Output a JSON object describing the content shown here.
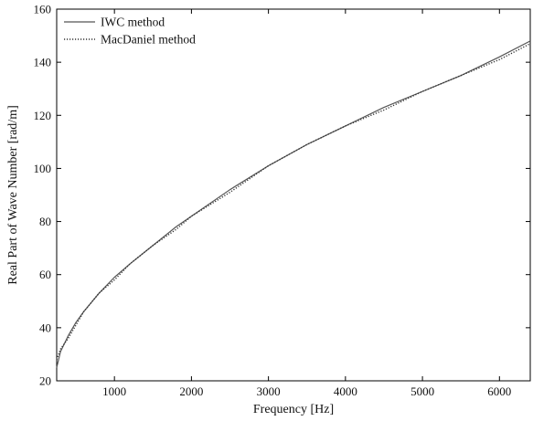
{
  "chart_data": {
    "type": "line",
    "title": "",
    "xlabel": "Frequency [Hz]",
    "ylabel": "Real Part of Wave Number [rad/m]",
    "xlim": [
      250,
      6400
    ],
    "ylim": [
      20,
      160
    ],
    "xticks": [
      1000,
      2000,
      3000,
      4000,
      5000,
      6000
    ],
    "yticks": [
      20,
      40,
      60,
      80,
      100,
      120,
      140,
      160
    ],
    "xtick_labels": [
      "1000",
      "2000",
      "3000",
      "4000",
      "5000",
      "6000"
    ],
    "ytick_labels": [
      "20",
      "40",
      "60",
      "80",
      "100",
      "120",
      "140",
      "160"
    ],
    "grid": false,
    "legend_position": "top-left",
    "series": [
      {
        "name": "IWC method",
        "style": "solid",
        "color": "#555555",
        "x": [
          250,
          300,
          400,
          500,
          600,
          800,
          1000,
          1200,
          1500,
          1800,
          2000,
          2500,
          3000,
          3500,
          4000,
          4500,
          5000,
          5500,
          6000,
          6400
        ],
        "y": [
          25,
          31,
          37,
          42,
          46,
          53,
          59,
          64,
          71,
          78,
          82,
          92,
          101,
          109,
          116,
          123,
          129,
          135,
          142,
          148
        ]
      },
      {
        "name": "MacDaniel method",
        "style": "dotted",
        "color": "#333333",
        "x": [
          250,
          300,
          400,
          500,
          600,
          800,
          1000,
          1200,
          1500,
          1800,
          2000,
          2500,
          3000,
          3500,
          4000,
          4500,
          5000,
          5500,
          6000,
          6400
        ],
        "y": [
          28,
          32,
          36,
          41,
          46,
          53,
          58,
          64,
          71,
          77,
          82,
          91,
          101,
          109,
          116,
          122,
          129,
          135,
          141,
          147
        ]
      }
    ]
  }
}
